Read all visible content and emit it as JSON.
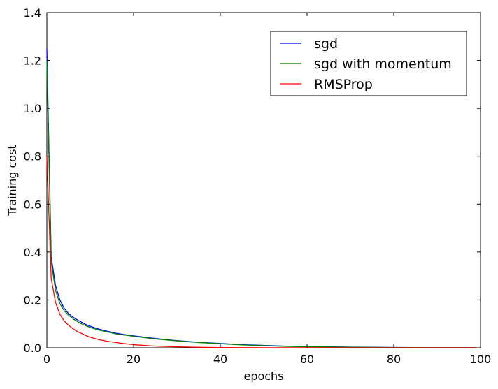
{
  "chart_data": {
    "type": "line",
    "title": "",
    "xlabel": "epochs",
    "ylabel": "Training cost",
    "xlim": [
      0,
      100
    ],
    "ylim": [
      0,
      1.4
    ],
    "xticks": [
      0,
      20,
      40,
      60,
      80,
      100
    ],
    "yticks": [
      0.0,
      0.2,
      0.4,
      0.6,
      0.8,
      1.0,
      1.2,
      1.4
    ],
    "xtick_labels": [
      "0",
      "20",
      "40",
      "60",
      "80",
      "100"
    ],
    "ytick_labels": [
      "0.0",
      "0.2",
      "0.4",
      "0.6",
      "0.8",
      "1.0",
      "1.2",
      "1.4"
    ],
    "grid": false,
    "legend_position": "top-right",
    "x": [
      0,
      1,
      2,
      3,
      4,
      5,
      6,
      7,
      8,
      9,
      10,
      12,
      14,
      16,
      18,
      20,
      25,
      30,
      35,
      40,
      45,
      50,
      55,
      60,
      65,
      70,
      75,
      80,
      85,
      90,
      95,
      99
    ],
    "series": [
      {
        "name": "sgd",
        "color": "#0000ff",
        "values": [
          1.25,
          0.38,
          0.26,
          0.2,
          0.165,
          0.143,
          0.128,
          0.117,
          0.107,
          0.097,
          0.09,
          0.078,
          0.069,
          0.061,
          0.055,
          0.05,
          0.039,
          0.03,
          0.023,
          0.018,
          0.013,
          0.01,
          0.007,
          0.005,
          0.004,
          0.003,
          0.002,
          0.0015,
          0.001,
          0.0008,
          0.0006,
          0.0005
        ]
      },
      {
        "name": "sgd with momentum",
        "color": "#008000",
        "values": [
          1.2,
          0.36,
          0.24,
          0.185,
          0.155,
          0.136,
          0.122,
          0.11,
          0.1,
          0.092,
          0.085,
          0.074,
          0.066,
          0.058,
          0.053,
          0.048,
          0.037,
          0.029,
          0.022,
          0.017,
          0.012,
          0.009,
          0.006,
          0.0045,
          0.0035,
          0.0025,
          0.0018,
          0.0012,
          0.0009,
          0.0007,
          0.0005,
          0.0004
        ]
      },
      {
        "name": "RMSProp",
        "color": "#ff0000",
        "values": [
          0.8,
          0.29,
          0.19,
          0.14,
          0.112,
          0.094,
          0.08,
          0.068,
          0.06,
          0.051,
          0.044,
          0.034,
          0.027,
          0.022,
          0.017,
          0.013,
          0.007,
          0.004,
          0.002,
          0.001,
          0.0006,
          0.0004,
          0.0003,
          0.0002,
          0.0002,
          0.0001,
          0.0001,
          0.0001,
          0.0001,
          0.0001,
          0.0001,
          0.0001
        ]
      }
    ]
  }
}
